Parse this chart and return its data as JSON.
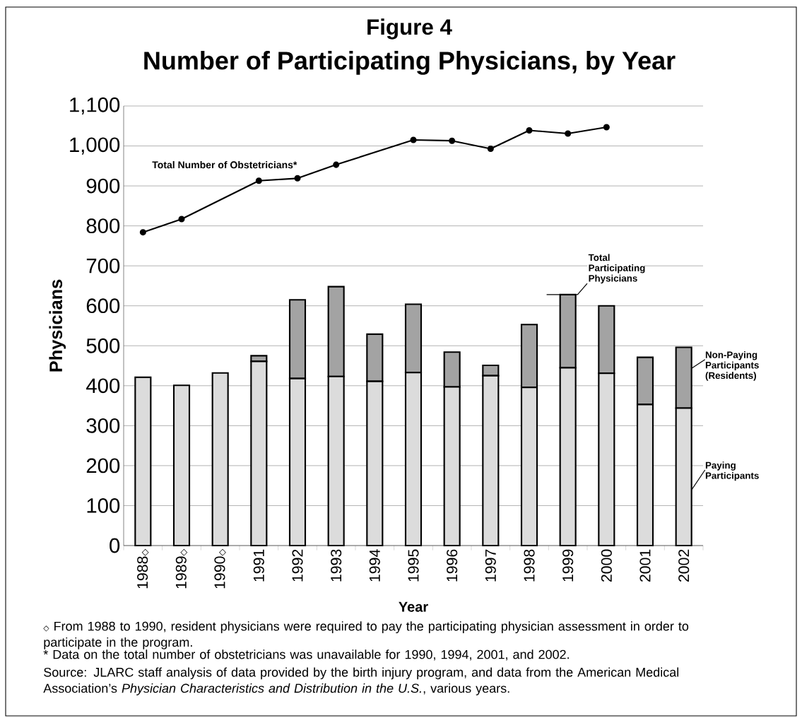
{
  "chart_data": {
    "type": "bar",
    "title": "Figure 4",
    "subtitle": "Number of Participating Physicians, by Year",
    "xlabel": "Year",
    "ylabel": "Physicians",
    "categories": [
      "1988◇",
      "1989◇",
      "1990◇",
      "1991",
      "1992",
      "1993",
      "1994",
      "1995",
      "1996",
      "1997",
      "1998",
      "1999",
      "2000",
      "2001",
      "2002"
    ],
    "stacked": true,
    "series": [
      {
        "name": "Paying Participants",
        "color": "#dcdcdc",
        "values": [
          421,
          401,
          432,
          461,
          418,
          423,
          411,
          433,
          397,
          425,
          396,
          445,
          431,
          353,
          344
        ]
      },
      {
        "name": "Non-Paying Participants (Residents)",
        "color": "#a3a3a3",
        "values": [
          null,
          null,
          null,
          14,
          197,
          225,
          118,
          171,
          87,
          26,
          157,
          183,
          169,
          118,
          152
        ]
      },
      {
        "name": "Total Number of Obstetricians*",
        "type": "line",
        "color": "#000000",
        "marker": "circle",
        "values": [
          784,
          817,
          null,
          913,
          919,
          953,
          null,
          1015,
          1013,
          993,
          1039,
          1031,
          1047,
          null,
          null
        ]
      }
    ],
    "ylim": [
      0,
      1100
    ],
    "yticks": [
      0,
      100,
      200,
      300,
      400,
      500,
      600,
      700,
      800,
      900,
      {
        "value": 1000,
        "label": "1,000"
      },
      {
        "value": 1100,
        "label": "1,100"
      }
    ],
    "grid": "y",
    "legend": "right",
    "annotations": [
      {
        "text": "Total Participating Physicians",
        "x": "1999",
        "y": 628
      },
      "◇ From 1988 to 1990, resident physicians were required to pay the participating physician assessment in order to participate in the program.",
      "* Data on the total number of obstetricians was unavailable for 1990, 1994, 2001, and 2002.",
      "Source: JLARC staff analysis of data provided by the birth injury program, and data from the American Medical Association’s *Physician Characteristics and Distribution in the U.S.*, various years."
    ]
  }
}
